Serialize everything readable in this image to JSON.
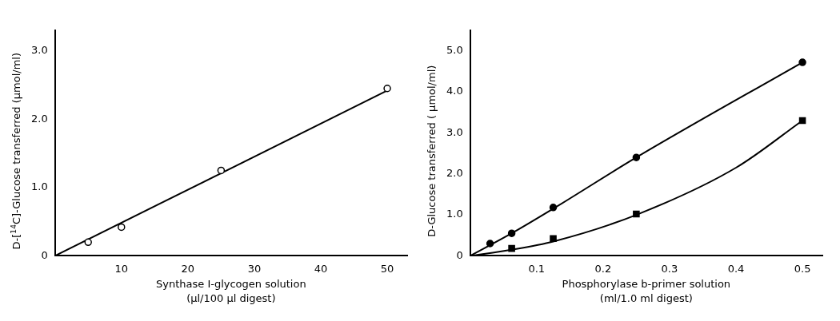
{
  "chart_data": [
    {
      "type": "scatter",
      "xlabel": "Synthase I-glycogen solution\n(µl/100 µl digest)",
      "ylabel": "D-[$^{14}$C]-Glucose transferred (µmol/ml)",
      "xlim": [
        0,
        53
      ],
      "ylim": [
        0,
        3.3
      ],
      "xticks": [
        10,
        20,
        30,
        40,
        50
      ],
      "yticks": [
        {
          "value": 0,
          "label": "0"
        },
        {
          "value": 1,
          "label": "1.0"
        },
        {
          "value": 2,
          "label": "2.0"
        },
        {
          "value": 3,
          "label": "3.0"
        }
      ],
      "grid": false,
      "legend": false,
      "series": [
        {
          "marker": "circle",
          "color": "#000000",
          "x": [
            5,
            10,
            25,
            50
          ],
          "values": [
            0.2,
            0.42,
            1.25,
            2.45
          ]
        },
        {
          "type": "line",
          "marker": "none",
          "color": "#000000",
          "x": [
            0,
            50
          ],
          "values": [
            0,
            2.42
          ]
        }
      ]
    },
    {
      "type": "scatter",
      "xlabel": "Phosphorylase b-primer solution\n(ml/1.0 ml digest)",
      "ylabel": "D-Glucose transferred ( µmol/ml)",
      "xlim": [
        0,
        0.53
      ],
      "ylim": [
        0,
        5.5
      ],
      "xticks": [
        {
          "value": 0.1,
          "label": "0.1"
        },
        {
          "value": 0.2,
          "label": "0.2"
        },
        {
          "value": 0.3,
          "label": "0.3"
        },
        {
          "value": 0.4,
          "label": "0.4"
        },
        {
          "value": 0.5,
          "label": "0.5"
        }
      ],
      "yticks": [
        {
          "value": 0,
          "label": "0"
        },
        {
          "value": 1,
          "label": "1.0"
        },
        {
          "value": 2,
          "label": "2.0"
        },
        {
          "value": 3,
          "label": "3.0"
        },
        {
          "value": 4,
          "label": "4.0"
        },
        {
          "value": 5,
          "label": "5.0"
        }
      ],
      "grid": false,
      "legend": false,
      "series": [
        {
          "marker": "circle",
          "color": "#000000",
          "x": [
            0.03,
            0.0625,
            0.125,
            0.25,
            0.5
          ],
          "values": [
            0.3,
            0.55,
            1.18,
            2.4,
            4.72
          ]
        },
        {
          "marker": "square",
          "color": "#000000",
          "x": [
            0.0625,
            0.125,
            0.25,
            0.5
          ],
          "values": [
            0.18,
            0.42,
            1.02,
            3.3
          ]
        },
        {
          "type": "line",
          "marker": "none",
          "color": "#000000",
          "x": [
            0,
            0.0625,
            0.125,
            0.25,
            0.5
          ],
          "values": [
            0,
            0.55,
            1.15,
            2.4,
            4.72
          ]
        },
        {
          "type": "line",
          "marker": "none",
          "color": "#000000",
          "x": [
            0,
            0.0625,
            0.125,
            0.25,
            0.4,
            0.5
          ],
          "values": [
            0,
            0.15,
            0.35,
            1.0,
            2.15,
            3.3
          ]
        }
      ]
    }
  ]
}
